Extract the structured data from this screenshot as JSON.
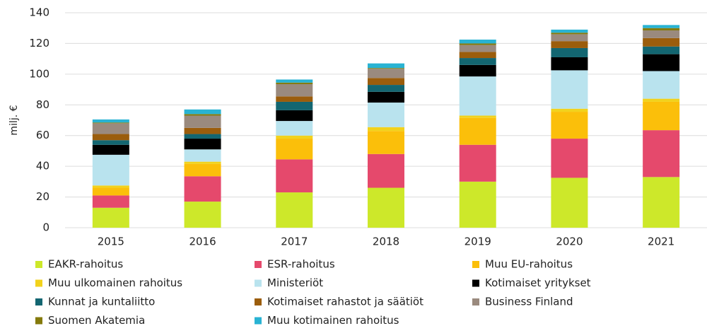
{
  "chart_data": {
    "type": "stacked_bar",
    "y_label": "milj. €",
    "categories": [
      "2015",
      "2016",
      "2017",
      "2018",
      "2019",
      "2020",
      "2021"
    ],
    "ylim": [
      0,
      140
    ],
    "yticks": [
      0,
      20,
      40,
      60,
      80,
      100,
      120,
      140
    ],
    "grid": true,
    "legend": "bottom",
    "series": [
      {
        "name": "EAKR-rahoitus",
        "color": "#cde82a",
        "values": [
          13,
          17,
          23,
          26,
          30,
          32.5,
          33
        ]
      },
      {
        "name": "ESR-rahoitus",
        "color": "#e5496c",
        "values": [
          8,
          16.5,
          21.5,
          22,
          24,
          25.5,
          30.5
        ]
      },
      {
        "name": "Muu EU-rahoitus",
        "color": "#fbbf0a",
        "values": [
          5,
          8,
          13.5,
          15,
          17.5,
          17.5,
          18.5
        ]
      },
      {
        "name": "Muu ulkomainen rahoitus",
        "color": "#f2d21c",
        "values": [
          1.5,
          1.5,
          2,
          2.5,
          1.5,
          2,
          2
        ]
      },
      {
        "name": "Ministeriöt",
        "color": "#b9e3ee",
        "values": [
          20,
          8,
          9.5,
          16,
          25.5,
          25,
          18
        ]
      },
      {
        "name": "Kotimaiset yritykset",
        "color": "#000000",
        "values": [
          6.5,
          7,
          7,
          7,
          7.5,
          8.5,
          11
        ]
      },
      {
        "name": "Kunnat ja kuntaliitto",
        "color": "#136671",
        "values": [
          3,
          3,
          5.5,
          4.5,
          4.5,
          6,
          5
        ]
      },
      {
        "name": "Kotimaiset rahastot ja säätiöt",
        "color": "#9b5d0c",
        "values": [
          4,
          4,
          3.5,
          4.5,
          4,
          4.5,
          5.5
        ]
      },
      {
        "name": "Business Finland",
        "color": "#9a8a7e",
        "values": [
          7,
          8,
          8,
          6,
          4.5,
          4.5,
          5
        ]
      },
      {
        "name": "Suomen Akatemia",
        "color": "#847a0b",
        "values": [
          0.5,
          1,
          1,
          0.5,
          1,
          1,
          1.5
        ]
      },
      {
        "name": "Muu kotimainen rahoitus",
        "color": "#29b3d3",
        "values": [
          2,
          3,
          2,
          3,
          2.5,
          2,
          2
        ]
      }
    ]
  }
}
